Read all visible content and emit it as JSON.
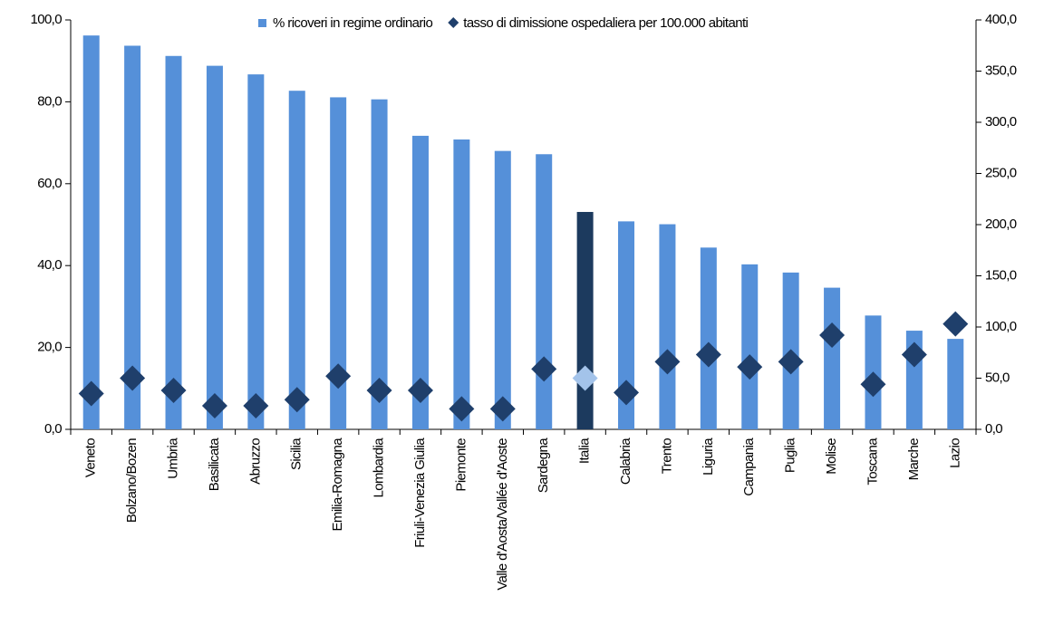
{
  "chart_data": {
    "type": "bar_scatter",
    "categories": [
      "Veneto",
      "Bolzano/Bozen",
      "Umbria",
      "Basilicata",
      "Abruzzo",
      "Sicilia",
      "Emilia-Romagna",
      "Lombardia",
      "Friuli-Venezia Giulia",
      "Piemonte",
      "Valle d'Aosta/Vallée d'Aoste",
      "Sardegna",
      "Italia",
      "Calabria",
      "Trento",
      "Liguria",
      "Campania",
      "Puglia",
      "Molise",
      "Toscana",
      "Marche",
      "Lazio"
    ],
    "highlight_category_index": 12,
    "series": [
      {
        "name": "% ricoveri in regime ordinario",
        "kind": "bar",
        "color": "#5590d9",
        "highlight_color": "#1c3a5e",
        "values": [
          96.2,
          93.7,
          91.2,
          88.8,
          86.7,
          82.7,
          81.1,
          80.6,
          71.7,
          70.8,
          68.0,
          67.2,
          53.1,
          50.8,
          50.1,
          44.4,
          40.3,
          38.3,
          34.6,
          27.8,
          24.1,
          22.1
        ]
      },
      {
        "name": "tasso di dimissione ospedaliera per 100.000 abitanti",
        "kind": "diamond",
        "axis": "y2",
        "color": "#1f3f6b",
        "highlight_color": "#a3c3ea",
        "values": [
          35,
          50,
          38,
          23,
          23,
          29,
          52,
          38,
          38,
          20,
          20,
          59,
          50,
          36,
          66,
          73,
          61,
          66,
          92,
          44,
          73,
          103
        ]
      }
    ],
    "ylim": [
      0,
      100
    ],
    "yticks": [
      {
        "value": 0,
        "label": "0,0"
      },
      {
        "value": 20,
        "label": "20,0"
      },
      {
        "value": 40,
        "label": "40,0"
      },
      {
        "value": 60,
        "label": "60,0"
      },
      {
        "value": 80,
        "label": "80,0"
      },
      {
        "value": 100,
        "label": "100,0"
      }
    ],
    "y2lim": [
      0,
      400
    ],
    "y2ticks": [
      {
        "value": 0,
        "label": "0,0"
      },
      {
        "value": 50,
        "label": "50,0"
      },
      {
        "value": 100,
        "label": "100,0"
      },
      {
        "value": 150,
        "label": "150,0"
      },
      {
        "value": 200,
        "label": "200,0"
      },
      {
        "value": 250,
        "label": "250,0"
      },
      {
        "value": 300,
        "label": "300,0"
      },
      {
        "value": 350,
        "label": "350,0"
      },
      {
        "value": 400,
        "label": "400,0"
      }
    ],
    "legend": "top"
  }
}
